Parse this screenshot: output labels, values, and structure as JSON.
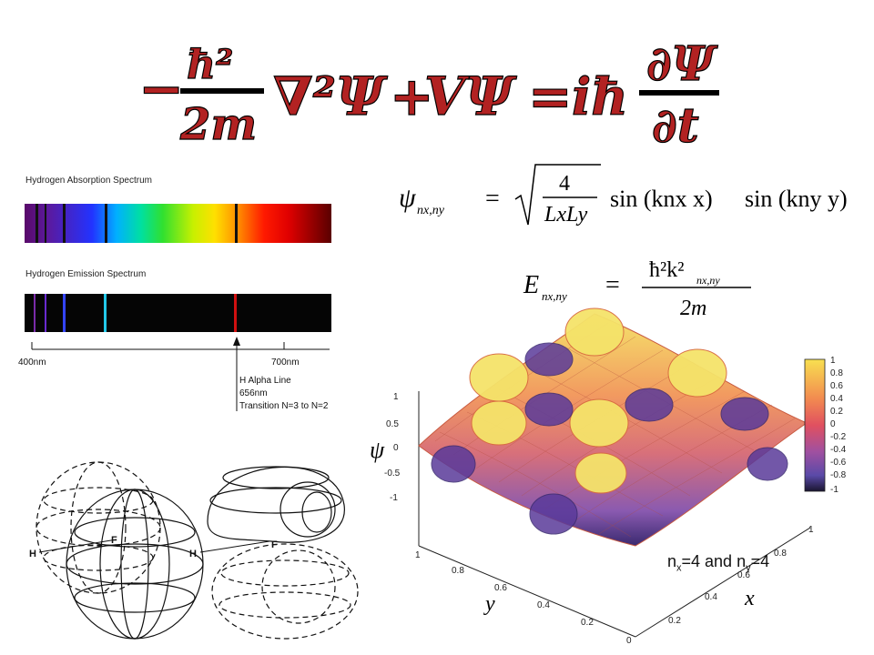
{
  "schrodinger": {
    "lhs_minus": "−",
    "hbar2": "ħ²",
    "two_m": "2m",
    "laplacian": "∇²Ψ",
    "plus": "+",
    "v_psi": "VΨ",
    "equals": "=",
    "i_hbar": "iħ",
    "dpsi": "∂Ψ",
    "dt": "∂t",
    "color": "#b22222"
  },
  "spectrum": {
    "absorption_title": "Hydrogen Absorption Spectrum",
    "emission_title": "Hydrogen Emission Spectrum",
    "axis_start": "400nm",
    "axis_end": "700nm",
    "annotation_line1": "H Alpha Line",
    "annotation_line2": "656nm",
    "annotation_line3": "Transition N=3 to N=2"
  },
  "wavefunction": {
    "psi_lhs": "ψ",
    "subscript": "nx,ny",
    "equals": "=",
    "numerator": "4",
    "denominator": "LxLy",
    "sin1": "sin (knx x)",
    "sin2": "sin (kny y)"
  },
  "energy": {
    "lhs": "E",
    "subscript": "nx,ny",
    "equals": "=",
    "numerator": "ħ²k²",
    "num_sub": "nx,ny",
    "denominator": "2m"
  },
  "orbital_diagram": {
    "label_h_left": "H",
    "label_f_left": "F",
    "label_h_right": "H",
    "label_f_right": "F"
  },
  "surface_plot": {
    "z_axis_label": "ψ",
    "z_ticks": [
      "1",
      "0.5",
      "0",
      "-0.5",
      "-1"
    ],
    "y_axis_label": "y",
    "y_ticks": [
      "1",
      "0.8",
      "0.6",
      "0.4",
      "0.2",
      "0"
    ],
    "x_axis_label": "x",
    "x_ticks": [
      "1",
      "0.8",
      "0.6",
      "0.4",
      "0.2"
    ],
    "colorbar_ticks": [
      "1",
      "0.8",
      "0.6",
      "0.4",
      "0.2",
      "0",
      "-0.2",
      "-0.4",
      "-0.6",
      "-0.8",
      "-1"
    ],
    "caption_n": "n",
    "caption_x": "x",
    "caption_mid": "=4 and n",
    "caption_y": "y",
    "caption_end": "=4",
    "colors": {
      "high": "#f5e36a",
      "mid": "#e07050",
      "low": "#2a1a5e"
    }
  }
}
